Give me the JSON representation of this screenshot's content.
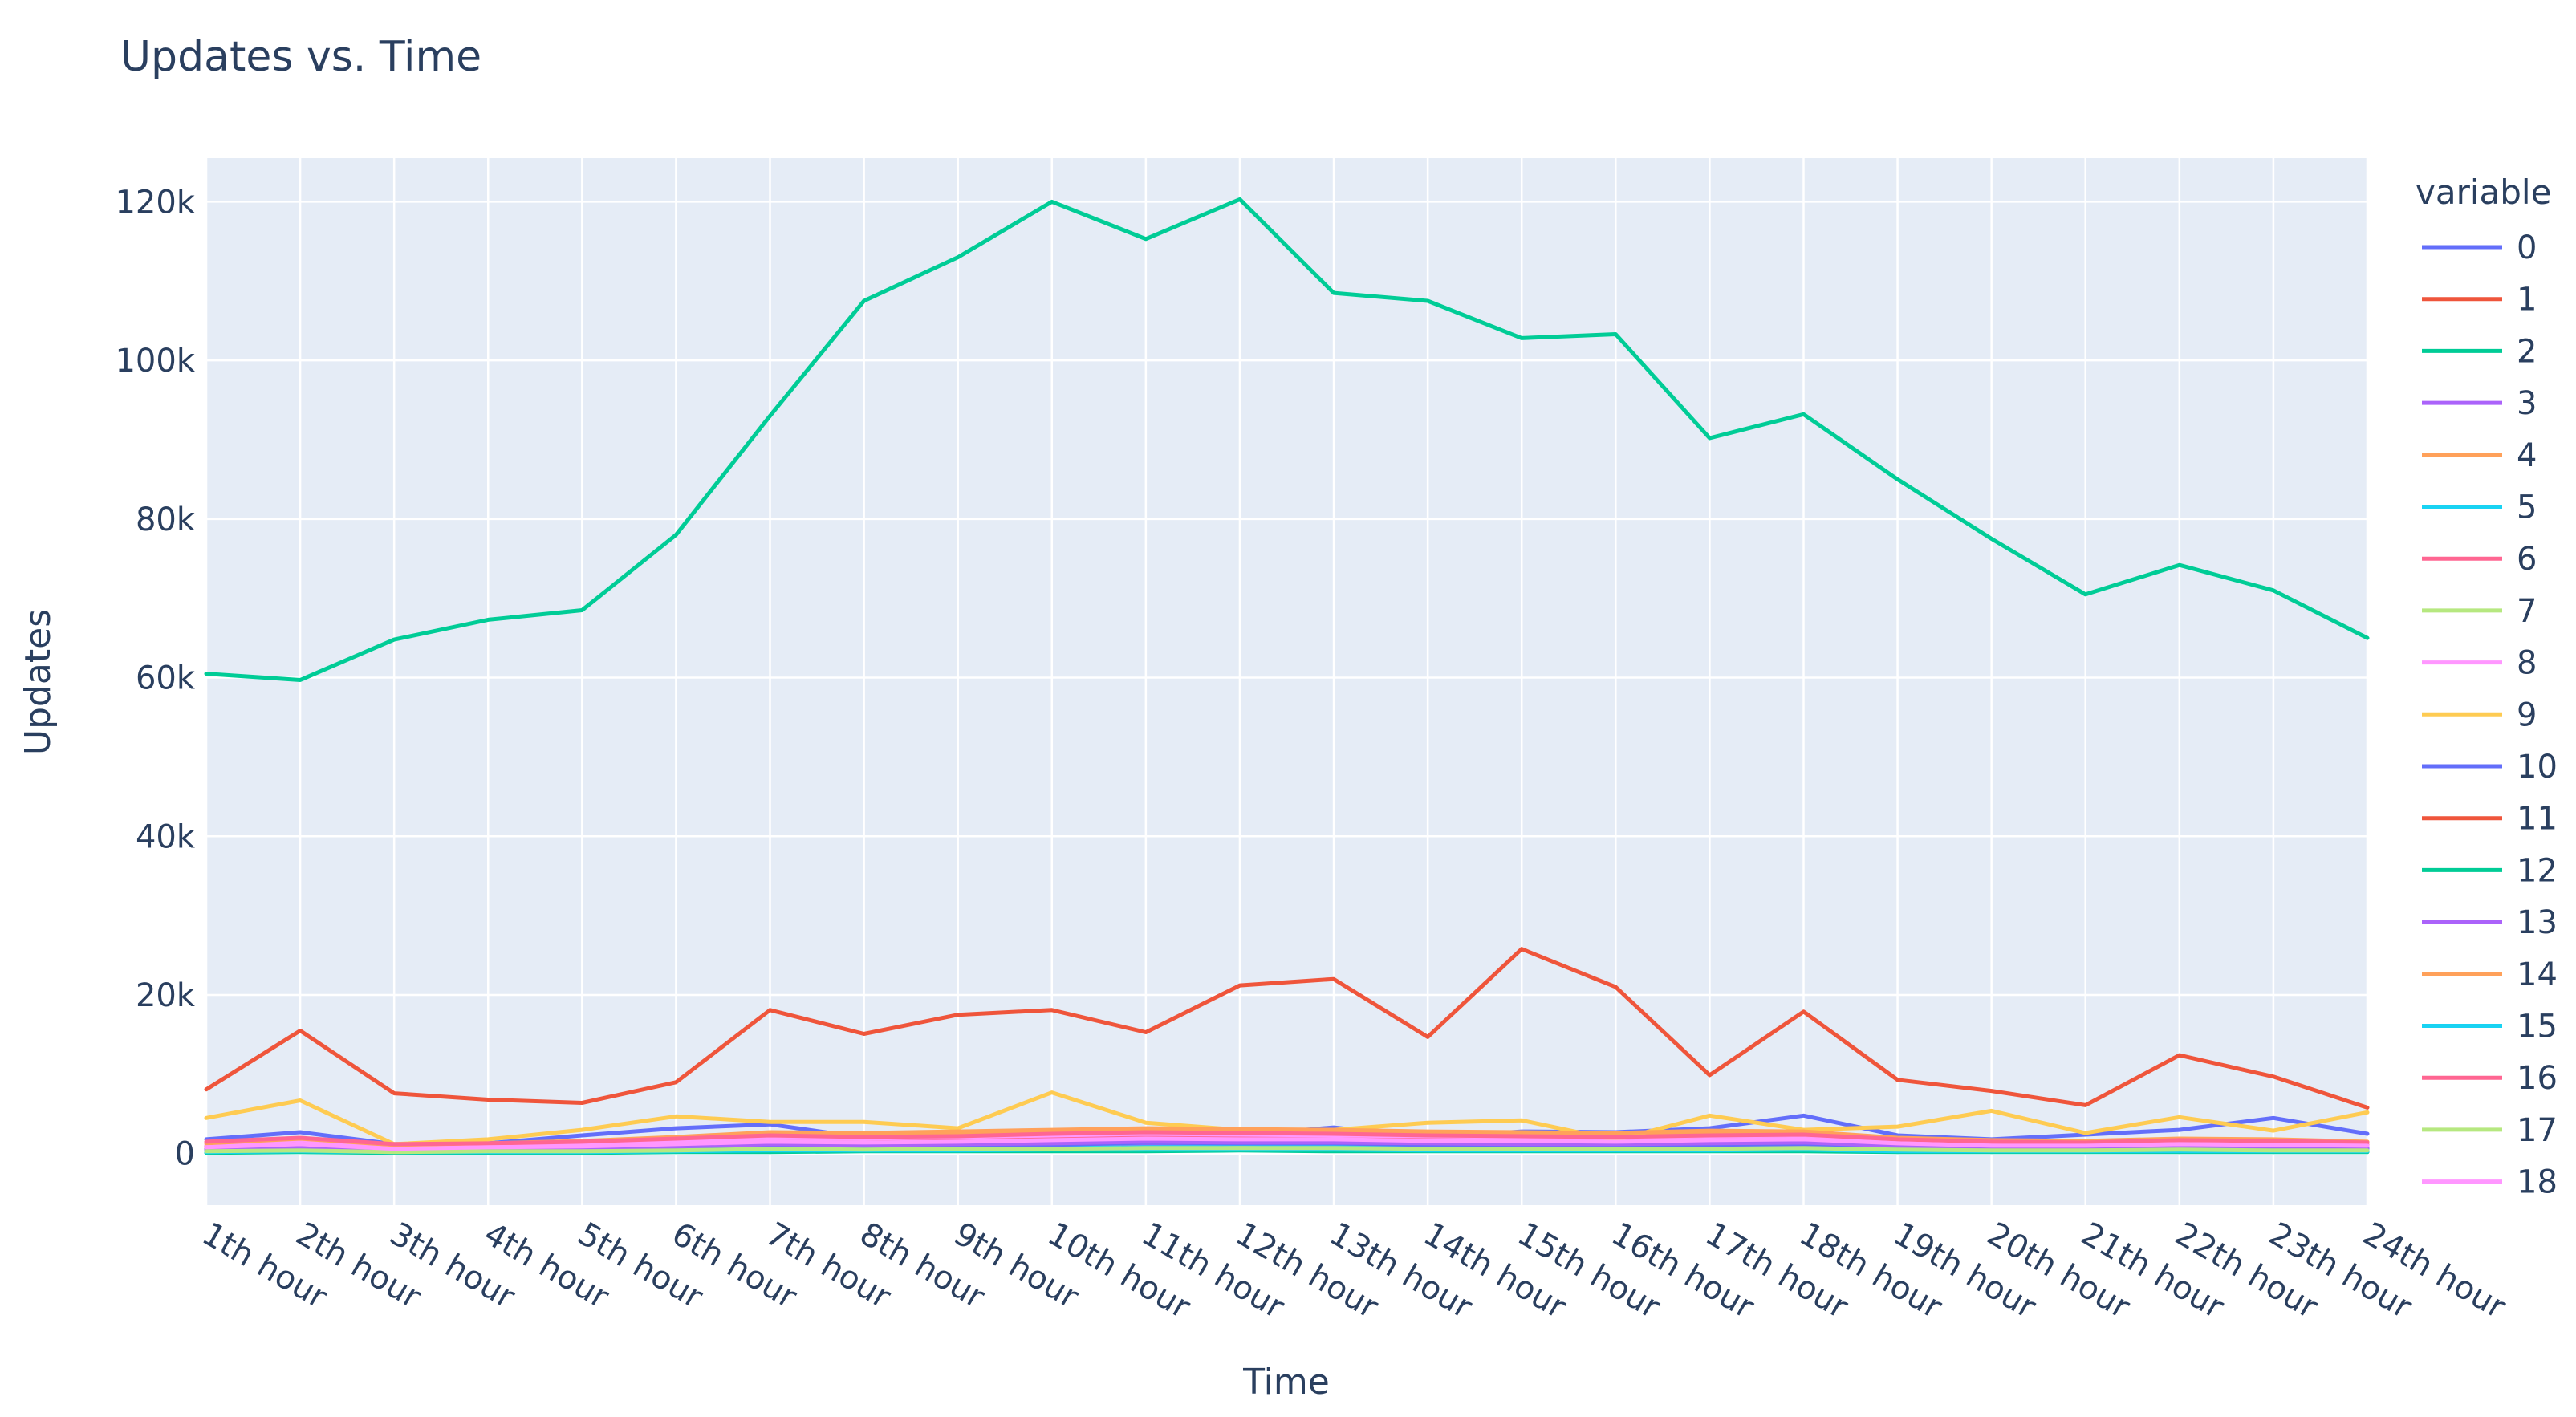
{
  "chart_data": {
    "type": "line",
    "title": "Updates vs. Time",
    "xlabel": "Time",
    "ylabel": "Updates",
    "legend_title": "variable",
    "legend_position": "right",
    "grid": true,
    "ylim": [
      -6500,
      125500
    ],
    "y_ticks": [
      0,
      20000,
      40000,
      60000,
      80000,
      100000,
      120000
    ],
    "y_tick_labels": [
      "0",
      "20k",
      "40k",
      "60k",
      "80k",
      "100k",
      "120k"
    ],
    "categories": [
      "1th hour",
      "2th hour",
      "3th hour",
      "4th hour",
      "5th hour",
      "6th hour",
      "7th hour",
      "8th hour",
      "9th hour",
      "10th hour",
      "11th hour",
      "12th hour",
      "13th hour",
      "14th hour",
      "15th hour",
      "16th hour",
      "17th hour",
      "18th hour",
      "19th hour",
      "20th hour",
      "21th hour",
      "22th hour",
      "23th hour",
      "24th hour"
    ],
    "series": [
      {
        "name": "0",
        "color": "#636efa",
        "values": [
          1800,
          2700,
          1200,
          1300,
          2300,
          3200,
          3700,
          2000,
          2000,
          2300,
          2200,
          2300,
          3300,
          2000,
          2800,
          2700,
          3200,
          4800,
          2300,
          1800,
          2400,
          3000,
          4500,
          2500
        ]
      },
      {
        "name": "1",
        "color": "#ef553b",
        "values": [
          700,
          1000,
          600,
          700,
          800,
          1100,
          1400,
          1300,
          1400,
          1700,
          1500,
          1800,
          1800,
          1400,
          1500,
          1400,
          1300,
          1400,
          1000,
          800,
          800,
          1000,
          900,
          700
        ]
      },
      {
        "name": "2",
        "color": "#00cc96",
        "values": [
          60500,
          59700,
          64800,
          67300,
          68500,
          78000,
          93000,
          107500,
          113000,
          120000,
          115300,
          120300,
          108500,
          107500,
          102800,
          103300,
          90200,
          93200,
          85000,
          77500,
          70500,
          74200,
          71000,
          65000
        ]
      },
      {
        "name": "3",
        "color": "#ab63fa",
        "values": [
          400,
          700,
          300,
          400,
          500,
          600,
          700,
          600,
          700,
          800,
          900,
          1000,
          900,
          800,
          800,
          900,
          800,
          1000,
          700,
          500,
          500,
          600,
          600,
          500
        ]
      },
      {
        "name": "4",
        "color": "#ffa15a",
        "values": [
          900,
          1300,
          800,
          1000,
          1300,
          1800,
          2400,
          2300,
          2500,
          2700,
          2900,
          2900,
          2800,
          2500,
          2400,
          2300,
          2600,
          2500,
          1800,
          1500,
          1400,
          1700,
          1600,
          1300
        ]
      },
      {
        "name": "5",
        "color": "#19d3f3",
        "values": [
          300,
          500,
          300,
          300,
          400,
          500,
          600,
          600,
          700,
          700,
          800,
          800,
          800,
          700,
          700,
          700,
          700,
          800,
          600,
          500,
          400,
          500,
          500,
          400
        ]
      },
      {
        "name": "6",
        "color": "#ff6692",
        "values": [
          1000,
          1500,
          800,
          900,
          1100,
          1400,
          1800,
          1700,
          1900,
          2100,
          2300,
          2200,
          2100,
          2000,
          1900,
          1800,
          2000,
          2100,
          1500,
          1200,
          1100,
          1400,
          1300,
          1100
        ]
      },
      {
        "name": "7",
        "color": "#b6e880",
        "values": [
          200,
          300,
          200,
          200,
          300,
          400,
          500,
          500,
          500,
          600,
          600,
          700,
          600,
          500,
          600,
          600,
          500,
          600,
          400,
          400,
          300,
          400,
          400,
          300
        ]
      },
      {
        "name": "8",
        "color": "#ff97ff",
        "values": [
          1100,
          1700,
          900,
          1100,
          1300,
          1600,
          2000,
          1900,
          2100,
          2300,
          2500,
          2400,
          2300,
          2200,
          2100,
          2000,
          2200,
          2300,
          1700,
          1400,
          1300,
          1600,
          1500,
          1300
        ]
      },
      {
        "name": "9",
        "color": "#fecb52",
        "values": [
          4500,
          6700,
          1200,
          1800,
          3000,
          4700,
          4000,
          4000,
          3200,
          7700,
          3900,
          3000,
          3000,
          3900,
          4200,
          1700,
          4800,
          3000,
          3400,
          5400,
          2600,
          4600,
          2900,
          5200
        ]
      },
      {
        "name": "10",
        "color": "#636efa",
        "values": [
          500,
          800,
          400,
          500,
          600,
          800,
          1000,
          900,
          1000,
          1100,
          1400,
          1300,
          1300,
          1100,
          1000,
          1000,
          1100,
          1200,
          900,
          700,
          700,
          800,
          800,
          700
        ]
      },
      {
        "name": "11",
        "color": "#ef553b",
        "values": [
          8100,
          15500,
          7600,
          6800,
          6400,
          9000,
          18100,
          15100,
          17500,
          18100,
          15300,
          21200,
          22000,
          14700,
          25800,
          21000,
          9900,
          17900,
          9300,
          7900,
          6100,
          12400,
          9700,
          5800
        ]
      },
      {
        "name": "12",
        "color": "#00cc96",
        "values": [
          100,
          200,
          100,
          100,
          100,
          200,
          200,
          300,
          300,
          300,
          300,
          400,
          300,
          300,
          300,
          300,
          300,
          300,
          200,
          200,
          200,
          200,
          200,
          200
        ]
      },
      {
        "name": "13",
        "color": "#ab63fa",
        "values": [
          600,
          900,
          500,
          600,
          700,
          900,
          1200,
          1100,
          1200,
          1300,
          1500,
          1400,
          1400,
          1300,
          1200,
          1200,
          1300,
          1400,
          1000,
          800,
          800,
          1000,
          900,
          800
        ]
      },
      {
        "name": "14",
        "color": "#ffa15a",
        "values": [
          1300,
          1900,
          1100,
          1300,
          1600,
          2100,
          2700,
          2600,
          2800,
          3000,
          3200,
          3100,
          3000,
          2800,
          2700,
          2600,
          2900,
          2800,
          2000,
          1700,
          1600,
          1900,
          1800,
          1500
        ]
      },
      {
        "name": "15",
        "color": "#19d3f3",
        "values": [
          200,
          300,
          200,
          200,
          200,
          300,
          400,
          400,
          400,
          500,
          500,
          500,
          500,
          400,
          400,
          400,
          400,
          500,
          300,
          300,
          300,
          300,
          300,
          300
        ]
      },
      {
        "name": "16",
        "color": "#ff6692",
        "values": [
          1500,
          2000,
          1200,
          1300,
          1500,
          1900,
          2300,
          2100,
          2200,
          2500,
          2700,
          2600,
          2500,
          2300,
          2200,
          2100,
          2300,
          2400,
          1800,
          1500,
          1400,
          1700,
          1600,
          1400
        ]
      },
      {
        "name": "17",
        "color": "#b6e880",
        "values": [
          300,
          400,
          200,
          300,
          300,
          400,
          600,
          500,
          600,
          600,
          700,
          700,
          700,
          600,
          600,
          600,
          600,
          700,
          500,
          400,
          400,
          500,
          400,
          400
        ]
      },
      {
        "name": "18",
        "color": "#ff97ff",
        "values": [
          800,
          1200,
          600,
          800,
          900,
          1200,
          1500,
          1400,
          1500,
          1700,
          1900,
          1800,
          1800,
          1600,
          1600,
          1500,
          1700,
          1800,
          1300,
          1000,
          1000,
          1200,
          1100,
          1000
        ]
      }
    ]
  }
}
